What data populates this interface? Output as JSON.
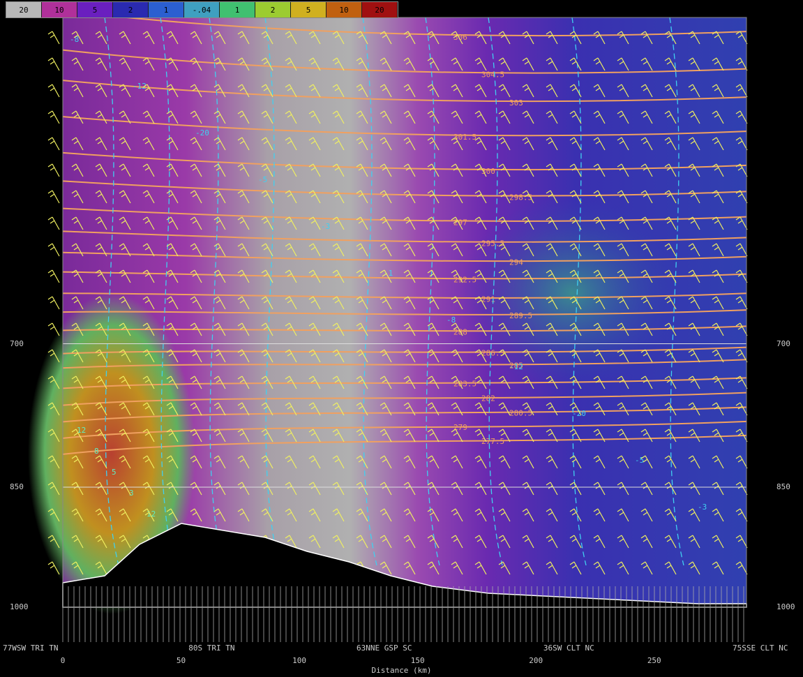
{
  "legend": {
    "labels": [
      "20",
      "10",
      "5",
      "2",
      "1",
      "-.04",
      "1",
      "2",
      "5",
      "10",
      "20"
    ],
    "colors": [
      "#b8b8b8",
      "#b0309a",
      "#6a1fbf",
      "#2a2ab0",
      "#2b5fd0",
      "#3fa0c0",
      "#40c070",
      "#9ccc30",
      "#d0b020",
      "#c06010",
      "#a01010"
    ]
  },
  "pressure_levels": [
    {
      "label": "700",
      "value": 700
    },
    {
      "label": "850",
      "value": 850
    },
    {
      "label": "1000",
      "value": 1000
    }
  ],
  "x_axis": {
    "title": "Distance (km)",
    "ticks": [
      {
        "label": "0",
        "value": 0
      },
      {
        "label": "50",
        "value": 50
      },
      {
        "label": "100",
        "value": 100
      },
      {
        "label": "150",
        "value": 150
      },
      {
        "label": "200",
        "value": 200
      },
      {
        "label": "250",
        "value": 250
      }
    ],
    "stations": [
      {
        "label": "77WSW TRI TN",
        "value": 0
      },
      {
        "label": "80S TRI TN",
        "value": 62
      },
      {
        "label": "63NNE GSP SC",
        "value": 133
      },
      {
        "label": "36SW CLT NC",
        "value": 212
      },
      {
        "label": "75SSE CLT NC",
        "value": 289
      }
    ]
  },
  "chart_data": {
    "type": "heatmap",
    "title": "",
    "xlabel": "Distance (km)",
    "ylabel": "",
    "xlim": [
      0,
      289
    ],
    "ylim": [
      1000,
      450
    ],
    "y_scale": "log-pressure",
    "theta_contours": [
      {
        "label": "306",
        "y": 463
      },
      {
        "label": "304.5",
        "y": 487
      },
      {
        "label": "303",
        "y": 506
      },
      {
        "label": "301.5",
        "y": 530
      },
      {
        "label": "300",
        "y": 555
      },
      {
        "label": "298.5",
        "y": 575
      },
      {
        "label": "297",
        "y": 595
      },
      {
        "label": "295.5",
        "y": 612
      },
      {
        "label": "294",
        "y": 628
      },
      {
        "label": "292.5",
        "y": 643
      },
      {
        "label": "291",
        "y": 660
      },
      {
        "label": "289.5",
        "y": 675
      },
      {
        "label": "288",
        "y": 690
      },
      {
        "label": "286.5",
        "y": 710
      },
      {
        "label": "285",
        "y": 722
      },
      {
        "label": "283.5",
        "y": 740
      },
      {
        "label": "282",
        "y": 755
      },
      {
        "label": "280.5",
        "y": 770
      },
      {
        "label": "279",
        "y": 785
      },
      {
        "label": "277.5",
        "y": 800
      }
    ],
    "omega_contour_labels": [
      "-8",
      "-12",
      "-20",
      "-5",
      "-3",
      "-1",
      "-8",
      "-12",
      "-20",
      "-5",
      "-3"
    ],
    "rh_contour_labels": [
      "12",
      "8",
      "5",
      "3",
      "12"
    ],
    "grid": false
  }
}
